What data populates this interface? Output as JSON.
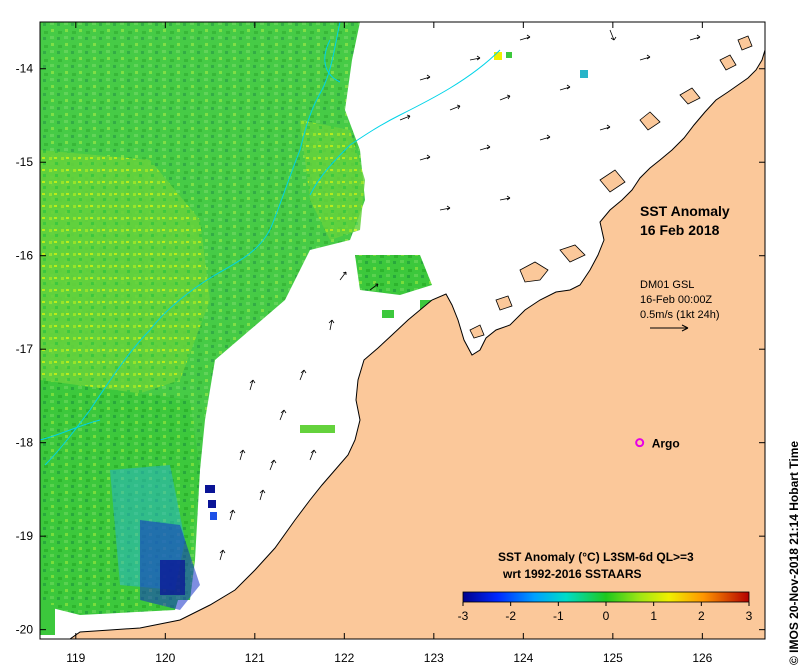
{
  "map": {
    "title": "SST Anomaly",
    "date": "16 Feb 2018",
    "current_block": {
      "line1": "DM01 GSL",
      "line2": "16-Feb 00:00Z",
      "line3": "0.5m/s (1kt 24h)"
    },
    "argo_label": "Argo",
    "lon_ticks": [
      "119",
      "120",
      "121",
      "122",
      "123",
      "124",
      "125",
      "126"
    ],
    "lat_ticks": [
      "-14",
      "-15",
      "-16",
      "-17",
      "-18",
      "-19",
      "-20"
    ],
    "lon_range": [
      118.6,
      126.7
    ],
    "lat_range": [
      -20.1,
      -13.5
    ],
    "argo_position": {
      "lon": 125.3,
      "lat": -18.0
    },
    "colorbar": {
      "title": "SST Anomaly (°C) L3SM-6d QL>=3",
      "subtitle": "wrt 1992-2016 SSTAARS",
      "ticks": [
        "-3",
        "-2",
        "-1",
        "0",
        "1",
        "2",
        "3"
      ],
      "range": [
        -3,
        3
      ]
    },
    "credit": "© IMOS 20-Nov-2018 21:14 Hobart Time",
    "colors": {
      "land": "#fbc89a",
      "water": "#ffffff",
      "sst_green": "#3cc83c",
      "argo": "#e600e6",
      "contour": "#00d4e8"
    }
  }
}
